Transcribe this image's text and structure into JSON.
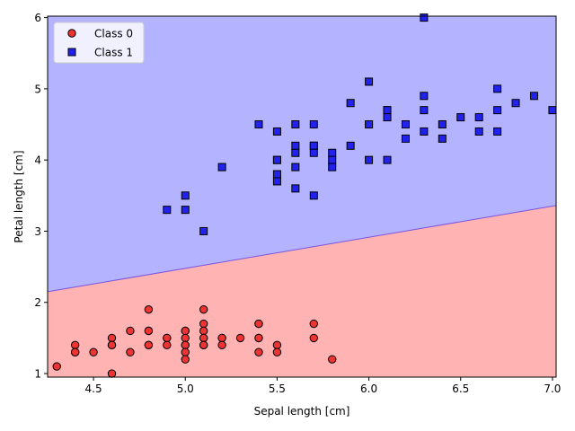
{
  "chart_data": {
    "type": "scatter",
    "title": "",
    "xlabel": "Sepal length [cm]",
    "ylabel": "Petal length [cm]",
    "xlim": [
      4.25,
      7.02
    ],
    "ylim": [
      0.95,
      6.02
    ],
    "xticks": [
      4.5,
      5.0,
      5.5,
      6.0,
      6.5,
      7.0
    ],
    "xtick_labels": [
      "4.5",
      "5.0",
      "5.5",
      "6.0",
      "6.5",
      "7.0"
    ],
    "yticks": [
      1,
      2,
      3,
      4,
      5,
      6
    ],
    "ytick_labels": [
      "1",
      "2",
      "3",
      "4",
      "5",
      "6"
    ],
    "grid": false,
    "legend_position": "top-left",
    "decision_regions": {
      "boundary": [
        [
          4.25,
          2.15
        ],
        [
          7.02,
          3.36
        ]
      ],
      "below": {
        "class": "Class 0",
        "color": "#ffb3b3"
      },
      "above": {
        "class": "Class 1",
        "color": "#b3b3ff"
      }
    },
    "series": [
      {
        "name": "Class 0",
        "marker": "circle",
        "color": "#ee3333",
        "edge": "#000000",
        "points": [
          [
            4.3,
            1.1
          ],
          [
            4.4,
            1.4
          ],
          [
            4.4,
            1.3
          ],
          [
            4.4,
            1.3
          ],
          [
            4.5,
            1.3
          ],
          [
            4.6,
            1.5
          ],
          [
            4.6,
            1.4
          ],
          [
            4.6,
            1.4
          ],
          [
            4.6,
            1.0
          ],
          [
            4.7,
            1.6
          ],
          [
            4.7,
            1.3
          ],
          [
            4.8,
            1.9
          ],
          [
            4.8,
            1.6
          ],
          [
            4.8,
            1.6
          ],
          [
            4.8,
            1.4
          ],
          [
            4.8,
            1.4
          ],
          [
            4.9,
            1.5
          ],
          [
            4.9,
            1.5
          ],
          [
            4.9,
            1.4
          ],
          [
            5.0,
            1.6
          ],
          [
            5.0,
            1.6
          ],
          [
            5.0,
            1.5
          ],
          [
            5.0,
            1.4
          ],
          [
            5.0,
            1.4
          ],
          [
            5.0,
            1.3
          ],
          [
            5.0,
            1.2
          ],
          [
            5.1,
            1.9
          ],
          [
            5.1,
            1.7
          ],
          [
            5.1,
            1.6
          ],
          [
            5.1,
            1.5
          ],
          [
            5.1,
            1.5
          ],
          [
            5.1,
            1.4
          ],
          [
            5.1,
            1.4
          ],
          [
            5.2,
            1.5
          ],
          [
            5.2,
            1.5
          ],
          [
            5.2,
            1.4
          ],
          [
            5.3,
            1.5
          ],
          [
            5.4,
            1.7
          ],
          [
            5.4,
            1.7
          ],
          [
            5.4,
            1.5
          ],
          [
            5.4,
            1.5
          ],
          [
            5.4,
            1.3
          ],
          [
            5.5,
            1.4
          ],
          [
            5.5,
            1.3
          ],
          [
            5.7,
            1.7
          ],
          [
            5.7,
            1.5
          ],
          [
            5.8,
            1.2
          ]
        ]
      },
      {
        "name": "Class 1",
        "marker": "square",
        "color": "#2222ee",
        "edge": "#000000",
        "points": [
          [
            4.9,
            3.3
          ],
          [
            5.0,
            3.5
          ],
          [
            5.0,
            3.3
          ],
          [
            5.1,
            3.0
          ],
          [
            5.2,
            3.9
          ],
          [
            5.4,
            4.5
          ],
          [
            5.5,
            4.4
          ],
          [
            5.5,
            4.0
          ],
          [
            5.5,
            4.0
          ],
          [
            5.5,
            3.8
          ],
          [
            5.5,
            3.7
          ],
          [
            5.6,
            4.5
          ],
          [
            5.6,
            4.2
          ],
          [
            5.6,
            4.1
          ],
          [
            5.6,
            3.9
          ],
          [
            5.6,
            3.6
          ],
          [
            5.7,
            4.5
          ],
          [
            5.7,
            4.2
          ],
          [
            5.7,
            4.2
          ],
          [
            5.7,
            4.1
          ],
          [
            5.7,
            3.5
          ],
          [
            5.8,
            4.1
          ],
          [
            5.8,
            4.0
          ],
          [
            5.8,
            3.9
          ],
          [
            5.9,
            4.8
          ],
          [
            5.9,
            4.2
          ],
          [
            6.0,
            5.1
          ],
          [
            6.0,
            4.5
          ],
          [
            6.0,
            4.5
          ],
          [
            6.0,
            4.0
          ],
          [
            6.1,
            4.7
          ],
          [
            6.1,
            4.7
          ],
          [
            6.1,
            4.6
          ],
          [
            6.1,
            4.0
          ],
          [
            6.2,
            4.5
          ],
          [
            6.2,
            4.3
          ],
          [
            6.3,
            6.0
          ],
          [
            6.3,
            4.9
          ],
          [
            6.3,
            4.7
          ],
          [
            6.3,
            4.4
          ],
          [
            6.4,
            4.5
          ],
          [
            6.4,
            4.3
          ],
          [
            6.5,
            4.6
          ],
          [
            6.6,
            4.6
          ],
          [
            6.6,
            4.4
          ],
          [
            6.7,
            5.0
          ],
          [
            6.7,
            4.7
          ],
          [
            6.7,
            4.4
          ],
          [
            6.8,
            4.8
          ],
          [
            6.9,
            4.9
          ],
          [
            7.0,
            4.7
          ]
        ]
      }
    ]
  }
}
